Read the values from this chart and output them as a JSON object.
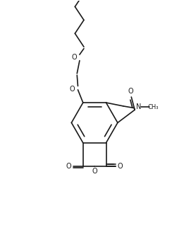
{
  "bg_color": "#ffffff",
  "line_color": "#1a1a1a",
  "line_width": 1.2,
  "fig_width": 2.44,
  "fig_height": 3.25,
  "dpi": 100,
  "xlim": [
    0,
    10
  ],
  "ylim": [
    0,
    13.3
  ]
}
